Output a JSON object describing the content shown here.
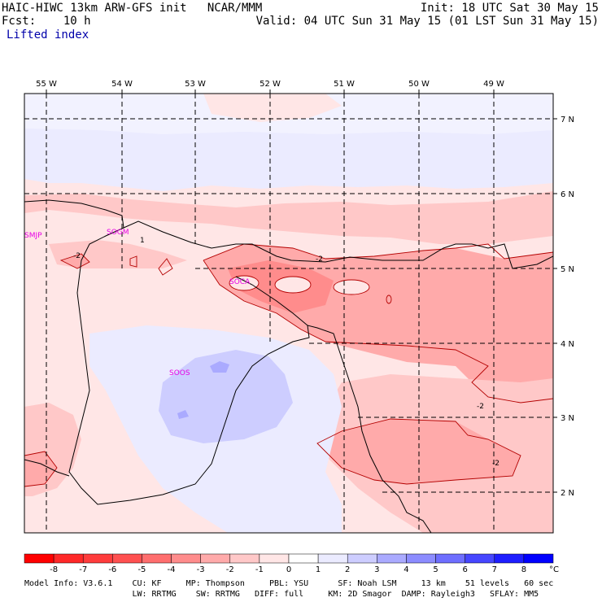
{
  "header": {
    "model_line": "HAIC-HIWC 13km ARW-GFS init   NCAR/MMM",
    "init_line": "Init: 18 UTC Sat 30 May 15",
    "fcst_line": "Fcst:    10 h",
    "valid_line": "Valid: 04 UTC Sun 31 May 15 (01 LST Sun 31 May 15)",
    "field_name": "Lifted index"
  },
  "map": {
    "lon_labels": [
      "55 W",
      "54 W",
      "53 W",
      "52 W",
      "51 W",
      "50 W",
      "49 W"
    ],
    "lat_labels": [
      "7 N",
      "6 N",
      "5 N",
      "4 N",
      "3 N",
      "2 N"
    ],
    "stations": [
      "SMJP",
      "SOGM",
      "SOCA",
      "SOOS"
    ],
    "contour_labels": [
      "-2",
      "-2",
      "-2",
      "-2",
      "1"
    ]
  },
  "colorbar": {
    "ticks": [
      "-8",
      "-7",
      "-6",
      "-5",
      "-4",
      "-3",
      "-2",
      "-1",
      "0",
      "1",
      "2",
      "3",
      "4",
      "5",
      "6",
      "7",
      "8"
    ],
    "unit": "°C",
    "colors": [
      "#ff0000",
      "#ff2828",
      "#ff3c3c",
      "#ff5050",
      "#ff6e6e",
      "#ff8c8c",
      "#ffaaaa",
      "#ffc8c8",
      "#ffe6e6",
      "#ebebff",
      "#cdcdff",
      "#aaaaff",
      "#8c8cff",
      "#6e6eff",
      "#4646ff",
      "#1e1eff",
      "#0000ff"
    ]
  },
  "model_info": {
    "line1": "Model Info: V3.6.1    CU: KF     MP: Thompson     PBL: YSU      SF: Noah LSM     13 km    51 levels   60 sec",
    "line2": "                      LW: RRTMG    SW: RRTMG   DIFF: full     KM: 2D Smagor  DAMP: Rayleigh3   SFLAY: MM5"
  },
  "colors": {
    "station": "#e600e6",
    "contour": "#b40000",
    "land_border": "#000000",
    "grid": "#000000"
  }
}
